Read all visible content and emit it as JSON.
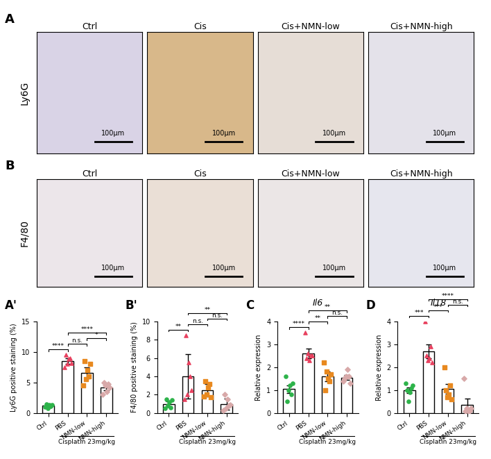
{
  "panels": [
    {
      "label": "A",
      "row_label": "Ly6G",
      "columns": [
        "Ctrl",
        "Cis",
        "Cis+NMN-low",
        "Cis+NMN-high"
      ],
      "scale_bar": "100μm"
    },
    {
      "label": "B",
      "row_label": "F4/80",
      "columns": [
        "Ctrl",
        "Cis",
        "Cis+NMN-low",
        "Cis+NMN-high"
      ],
      "scale_bar": "100μm"
    }
  ],
  "chart_data": [
    {
      "type": "bar",
      "label": "A'",
      "ylabel": "Ly6G positive staining (%)",
      "categories": [
        "Ctrl",
        "PBS",
        "NMN-low",
        "NMN-high"
      ],
      "group_label": "Cisplatin 23mg/kg",
      "values": [
        1.2,
        8.5,
        6.6,
        4.2
      ],
      "errors": [
        0.3,
        0.5,
        0.9,
        0.5
      ],
      "points": [
        [
          1.0,
          1.5,
          0.8,
          1.3,
          1.1,
          1.4
        ],
        [
          7.5,
          9.5,
          8.0,
          8.8,
          9.0,
          8.2
        ],
        [
          4.5,
          8.5,
          5.5,
          7.0,
          6.0,
          8.0
        ],
        [
          3.0,
          5.0,
          4.5,
          3.5,
          4.8,
          4.2
        ]
      ],
      "colors": [
        "#2db34a",
        "#e8415f",
        "#e8891f",
        "#d8a9a9"
      ],
      "ylim": [
        0,
        15
      ],
      "yticks": [
        0,
        5,
        10,
        15
      ],
      "annotations": [
        {
          "from": 0,
          "to": 1,
          "label": "****"
        },
        {
          "from": 1,
          "to": 2,
          "label": "n.s."
        },
        {
          "from": 2,
          "to": 3,
          "label": "*"
        },
        {
          "from": 1,
          "to": 3,
          "label": "****"
        }
      ]
    },
    {
      "type": "bar",
      "label": "B'",
      "ylabel": "F4/80 positive staining (%)",
      "categories": [
        "Ctrl",
        "PBS",
        "NMN-low",
        "NMN-high"
      ],
      "group_label": "Cisplatin 23mg/kg",
      "values": [
        1.0,
        4.0,
        2.5,
        1.0
      ],
      "errors": [
        0.3,
        2.4,
        0.7,
        0.6
      ],
      "points": [
        [
          0.5,
          1.5,
          0.8,
          1.2,
          0.6,
          1.4
        ],
        [
          1.5,
          8.5,
          2.0,
          5.5,
          4.0,
          2.5
        ],
        [
          1.8,
          3.5,
          2.0,
          2.8,
          3.2,
          1.7
        ],
        [
          0.3,
          2.0,
          0.5,
          1.5,
          0.8,
          0.9
        ]
      ],
      "colors": [
        "#2db34a",
        "#e8415f",
        "#e8891f",
        "#d8a9a9"
      ],
      "ylim": [
        0,
        10
      ],
      "yticks": [
        0,
        2,
        4,
        6,
        8,
        10
      ],
      "annotations": [
        {
          "from": 0,
          "to": 1,
          "label": "**"
        },
        {
          "from": 1,
          "to": 2,
          "label": "n.s."
        },
        {
          "from": 2,
          "to": 3,
          "label": "n.s."
        },
        {
          "from": 1,
          "to": 3,
          "label": "**"
        }
      ]
    },
    {
      "type": "bar",
      "label": "C",
      "title": "Il6",
      "ylabel": "Relative expression",
      "categories": [
        "Ctrl",
        "PBS",
        "NMN-low",
        "NMN-high"
      ],
      "group_label": "Cisplatin 23mg/kg",
      "values": [
        1.05,
        2.6,
        1.6,
        1.55
      ],
      "errors": [
        0.17,
        0.2,
        0.2,
        0.1
      ],
      "points": [
        [
          1.6,
          0.5,
          1.0,
          1.2,
          0.8,
          1.3
        ],
        [
          3.5,
          2.4,
          2.6,
          2.3,
          2.5,
          2.5
        ],
        [
          2.2,
          1.0,
          1.8,
          1.5,
          1.4,
          1.7
        ],
        [
          1.4,
          1.5,
          1.6,
          1.9,
          1.6,
          1.3
        ]
      ],
      "colors": [
        "#2db34a",
        "#e8415f",
        "#e8891f",
        "#d8a9a9"
      ],
      "ylim": [
        0,
        4
      ],
      "yticks": [
        0,
        1,
        2,
        3,
        4
      ],
      "annotations": [
        {
          "from": 0,
          "to": 1,
          "label": "****"
        },
        {
          "from": 1,
          "to": 2,
          "label": "**"
        },
        {
          "from": 2,
          "to": 3,
          "label": "n.s."
        },
        {
          "from": 1,
          "to": 3,
          "label": "**"
        }
      ]
    },
    {
      "type": "bar",
      "label": "D",
      "title": "Il18",
      "ylabel": "Relative expression",
      "categories": [
        "Ctrl",
        "PBS",
        "NMN-low",
        "NMN-high"
      ],
      "group_label": "Cisplatin 23mg/kg",
      "values": [
        1.0,
        2.7,
        1.05,
        0.37
      ],
      "errors": [
        0.12,
        0.3,
        0.22,
        0.25
      ],
      "points": [
        [
          1.3,
          1.0,
          0.5,
          0.9,
          1.1,
          1.2
        ],
        [
          4.0,
          2.5,
          2.3,
          2.4,
          2.9,
          2.2
        ],
        [
          2.0,
          1.0,
          0.7,
          0.8,
          1.2,
          0.6
        ],
        [
          1.5,
          0.1,
          0.2,
          0.1,
          0.1,
          0.2
        ]
      ],
      "colors": [
        "#2db34a",
        "#e8415f",
        "#e8891f",
        "#d8a9a9"
      ],
      "ylim": [
        0,
        4
      ],
      "yticks": [
        0,
        1,
        2,
        3,
        4
      ],
      "annotations": [
        {
          "from": 0,
          "to": 1,
          "label": "***"
        },
        {
          "from": 1,
          "to": 2,
          "label": "***"
        },
        {
          "from": 2,
          "to": 3,
          "label": "n.s."
        },
        {
          "from": 1,
          "to": 3,
          "label": "****"
        }
      ]
    }
  ]
}
